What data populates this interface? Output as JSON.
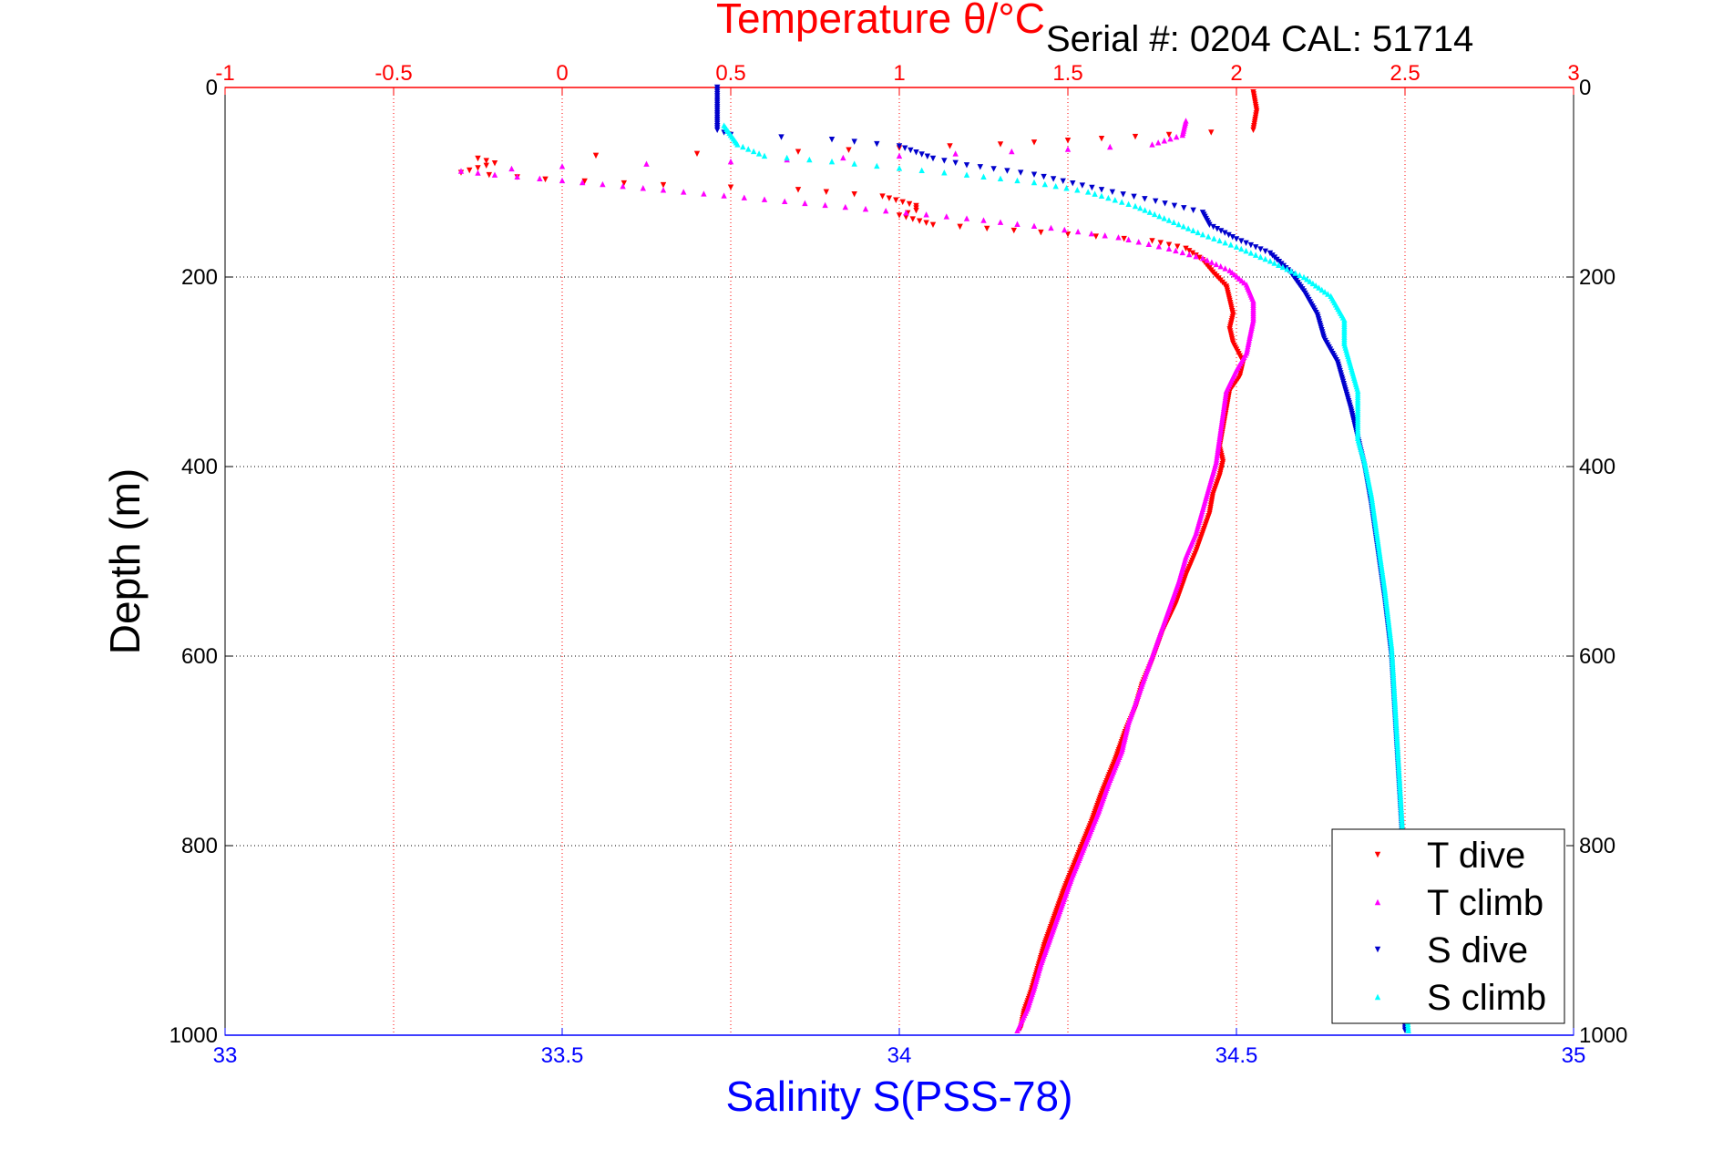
{
  "header": {
    "title_top": "Temperature θ/°C",
    "serial": "Serial #: 0204   CAL: 51714"
  },
  "chart_data": {
    "type": "scatter",
    "title": "Temperature θ/°C",
    "ylabel": "Depth (m)",
    "xlabel": "Salinity S(PSS-78)",
    "y_axis": {
      "range": [
        0,
        1000
      ],
      "reversed": true,
      "ticks": [
        "0",
        "200",
        "400",
        "600",
        "800",
        "1000"
      ],
      "tick_values": [
        0,
        200,
        400,
        600,
        800,
        1000
      ]
    },
    "top_axis": {
      "label": "Temperature θ/°C",
      "range": [
        -1,
        3
      ],
      "ticks": [
        "-1",
        "-0.5",
        "0",
        "0.5",
        "1",
        "1.5",
        "2",
        "2.5",
        "3"
      ],
      "tick_values": [
        -1,
        -0.5,
        0,
        0.5,
        1,
        1.5,
        2,
        2.5,
        3
      ],
      "color": "#ff0000"
    },
    "bottom_axis": {
      "label": "Salinity S(PSS-78)",
      "range": [
        33,
        35
      ],
      "ticks": [
        "33",
        "33.5",
        "34",
        "34.5",
        "35"
      ],
      "tick_values": [
        33,
        33.5,
        34,
        34.5,
        35
      ],
      "color": "#0000ff"
    },
    "grid": true,
    "legend_position": "bottom-right",
    "series": [
      {
        "name": "T dive",
        "axis": "top",
        "color": "#ff0000",
        "marker": "triangle-down",
        "points": [
          [
            2.05,
            5
          ],
          [
            2.06,
            25
          ],
          [
            2.05,
            45
          ],
          [
            1.8,
            50
          ],
          [
            1.3,
            60
          ],
          [
            0.7,
            68
          ],
          [
            0.1,
            72
          ],
          [
            -0.25,
            75
          ],
          [
            -0.2,
            80
          ],
          [
            -0.25,
            85
          ],
          [
            -0.3,
            90
          ],
          [
            -0.05,
            97
          ],
          [
            0.3,
            103
          ],
          [
            0.7,
            108
          ],
          [
            0.95,
            115
          ],
          [
            1.05,
            125
          ],
          [
            1.05,
            130
          ],
          [
            1.0,
            135
          ],
          [
            1.1,
            145
          ],
          [
            1.5,
            155
          ],
          [
            1.75,
            162
          ],
          [
            1.85,
            170
          ],
          [
            1.9,
            182
          ],
          [
            1.93,
            195
          ],
          [
            1.97,
            210
          ],
          [
            1.98,
            225
          ],
          [
            1.99,
            240
          ],
          [
            1.98,
            255
          ],
          [
            1.99,
            270
          ],
          [
            2.02,
            290
          ],
          [
            2.01,
            305
          ],
          [
            1.98,
            320
          ],
          [
            1.97,
            340
          ],
          [
            1.96,
            360
          ],
          [
            1.95,
            380
          ],
          [
            1.96,
            395
          ],
          [
            1.95,
            410
          ],
          [
            1.93,
            430
          ],
          [
            1.92,
            450
          ],
          [
            1.9,
            470
          ],
          [
            1.88,
            490
          ],
          [
            1.85,
            515
          ],
          [
            1.82,
            545
          ],
          [
            1.78,
            575
          ],
          [
            1.75,
            605
          ],
          [
            1.72,
            630
          ],
          [
            1.7,
            655
          ],
          [
            1.67,
            680
          ],
          [
            1.64,
            710
          ],
          [
            1.6,
            745
          ],
          [
            1.57,
            775
          ],
          [
            1.53,
            810
          ],
          [
            1.49,
            845
          ],
          [
            1.46,
            875
          ],
          [
            1.43,
            905
          ],
          [
            1.41,
            930
          ],
          [
            1.39,
            955
          ],
          [
            1.37,
            975
          ],
          [
            1.36,
            993
          ]
        ]
      },
      {
        "name": "T climb",
        "axis": "top",
        "color": "#ff00ff",
        "marker": "triangle-up",
        "points": [
          [
            1.85,
            35
          ],
          [
            1.84,
            50
          ],
          [
            1.75,
            60
          ],
          [
            1.5,
            65
          ],
          [
            1.0,
            72
          ],
          [
            0.5,
            78
          ],
          [
            0.0,
            83
          ],
          [
            -0.3,
            88
          ],
          [
            -0.2,
            92
          ],
          [
            0.0,
            98
          ],
          [
            0.3,
            108
          ],
          [
            0.6,
            118
          ],
          [
            0.9,
            128
          ],
          [
            1.2,
            138
          ],
          [
            1.45,
            148
          ],
          [
            1.65,
            158
          ],
          [
            1.8,
            170
          ],
          [
            1.9,
            180
          ],
          [
            1.98,
            193
          ],
          [
            2.03,
            208
          ],
          [
            2.05,
            225
          ],
          [
            2.05,
            245
          ],
          [
            2.04,
            262
          ],
          [
            2.03,
            280
          ],
          [
            2.0,
            298
          ],
          [
            1.97,
            320
          ],
          [
            1.96,
            345
          ],
          [
            1.95,
            370
          ],
          [
            1.94,
            395
          ],
          [
            1.92,
            420
          ],
          [
            1.9,
            445
          ],
          [
            1.88,
            470
          ],
          [
            1.85,
            495
          ],
          [
            1.83,
            520
          ],
          [
            1.8,
            550
          ],
          [
            1.77,
            580
          ],
          [
            1.74,
            610
          ],
          [
            1.71,
            640
          ],
          [
            1.68,
            670
          ],
          [
            1.66,
            700
          ],
          [
            1.62,
            735
          ],
          [
            1.59,
            765
          ],
          [
            1.55,
            800
          ],
          [
            1.51,
            835
          ],
          [
            1.48,
            865
          ],
          [
            1.45,
            895
          ],
          [
            1.42,
            925
          ],
          [
            1.4,
            950
          ],
          [
            1.38,
            972
          ],
          [
            1.35,
            995
          ]
        ]
      },
      {
        "name": "S dive",
        "axis": "bottom",
        "color": "#0000cc",
        "marker": "triangle-down",
        "points": [
          [
            33.73,
            0
          ],
          [
            33.73,
            25
          ],
          [
            33.73,
            45
          ],
          [
            33.75,
            50
          ],
          [
            33.9,
            55
          ],
          [
            34.0,
            62
          ],
          [
            34.05,
            75
          ],
          [
            34.1,
            82
          ],
          [
            34.2,
            92
          ],
          [
            34.3,
            108
          ],
          [
            34.38,
            120
          ],
          [
            34.45,
            132
          ],
          [
            34.46,
            145
          ],
          [
            34.5,
            160
          ],
          [
            34.55,
            175
          ],
          [
            34.58,
            195
          ],
          [
            34.6,
            215
          ],
          [
            34.62,
            240
          ],
          [
            34.63,
            265
          ],
          [
            34.65,
            290
          ],
          [
            34.66,
            315
          ],
          [
            34.67,
            340
          ],
          [
            34.68,
            370
          ],
          [
            34.69,
            400
          ],
          [
            34.7,
            440
          ],
          [
            34.71,
            490
          ],
          [
            34.72,
            540
          ],
          [
            34.73,
            600
          ],
          [
            34.735,
            660
          ],
          [
            34.74,
            720
          ],
          [
            34.745,
            780
          ],
          [
            34.75,
            840
          ],
          [
            34.75,
            900
          ],
          [
            34.75,
            960
          ],
          [
            34.75,
            995
          ]
        ]
      },
      {
        "name": "S climb",
        "axis": "bottom",
        "color": "#00ffff",
        "marker": "triangle-up",
        "points": [
          [
            33.74,
            40
          ],
          [
            33.75,
            50
          ],
          [
            33.76,
            60
          ],
          [
            33.8,
            72
          ],
          [
            33.9,
            78
          ],
          [
            34.0,
            85
          ],
          [
            34.1,
            92
          ],
          [
            34.2,
            100
          ],
          [
            34.28,
            110
          ],
          [
            34.35,
            125
          ],
          [
            34.4,
            140
          ],
          [
            34.45,
            155
          ],
          [
            34.5,
            168
          ],
          [
            34.55,
            183
          ],
          [
            34.6,
            200
          ],
          [
            34.64,
            220
          ],
          [
            34.66,
            245
          ],
          [
            34.66,
            270
          ],
          [
            34.67,
            295
          ],
          [
            34.68,
            320
          ],
          [
            34.68,
            345
          ],
          [
            34.68,
            370
          ],
          [
            34.69,
            395
          ],
          [
            34.7,
            430
          ],
          [
            34.71,
            480
          ],
          [
            34.72,
            530
          ],
          [
            34.73,
            590
          ],
          [
            34.735,
            650
          ],
          [
            34.74,
            710
          ],
          [
            34.745,
            770
          ],
          [
            34.75,
            830
          ],
          [
            34.75,
            890
          ],
          [
            34.75,
            950
          ],
          [
            34.755,
            995
          ]
        ]
      }
    ]
  }
}
